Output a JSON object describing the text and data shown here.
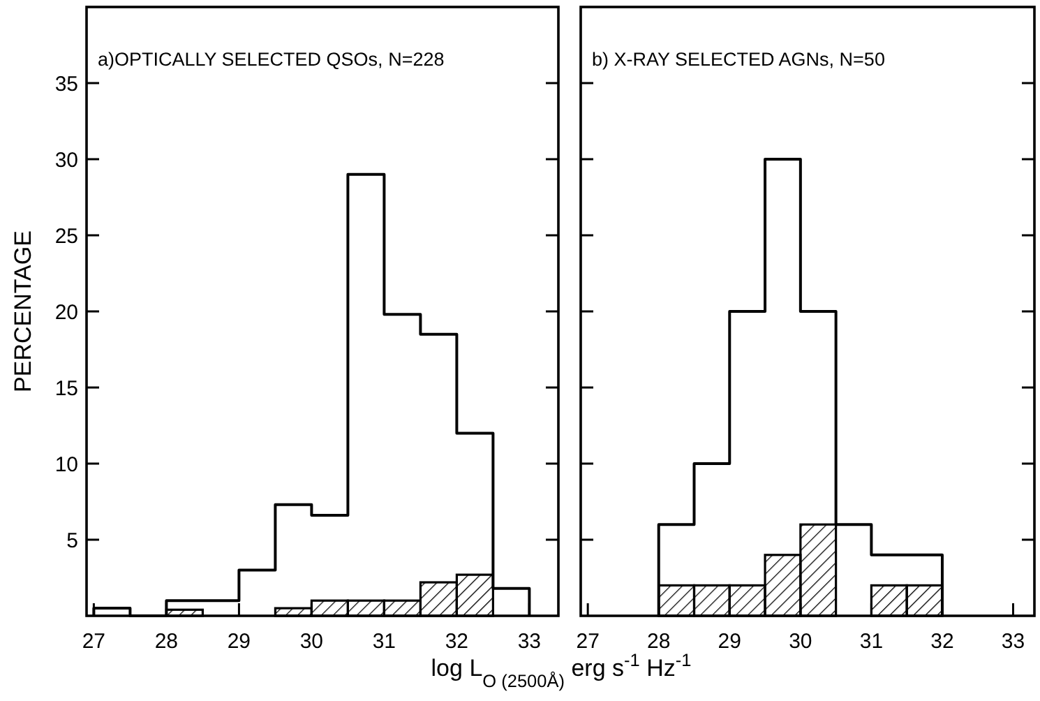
{
  "chart_data": [
    {
      "type": "histogram",
      "title": "a)OPTICALLY SELECTED QSOs, N=228",
      "ylabel": "PERCENTAGE",
      "xlabel": "log L$_{O (2500Å)}$ erg s$^{-1}$ Hz$^{-1}$",
      "bins": [
        27,
        27.5,
        28,
        28.5,
        29,
        29.5,
        30,
        30.5,
        31,
        31.5,
        32,
        32.5,
        33
      ],
      "series": [
        {
          "color": "#000000",
          "values": [
            0.5,
            0,
            1,
            1,
            3,
            7.3,
            6.6,
            29,
            19.8,
            18.5,
            12,
            1.8
          ]
        },
        {
          "color": "#000000",
          "values": [
            0,
            0,
            0.4,
            0,
            0,
            0.5,
            1,
            1,
            1,
            2.2,
            2.7,
            0
          ]
        }
      ],
      "xlim": [
        26.9,
        33.4
      ],
      "xticks": [
        27,
        28,
        29,
        30,
        31,
        32,
        33
      ],
      "ylim": [
        0,
        40
      ],
      "yticks": [
        5,
        10,
        15,
        20,
        25,
        30,
        35
      ]
    },
    {
      "type": "histogram",
      "title": "b) X-RAY SELECTED AGNs, N=50",
      "bins": [
        28,
        28.5,
        29,
        29.5,
        30,
        30.5,
        31,
        31.5,
        32
      ],
      "series": [
        {
          "color": "#000000",
          "values": [
            6,
            10,
            20,
            30,
            20,
            6,
            4,
            4
          ]
        },
        {
          "color": "#000000",
          "values": [
            2,
            2,
            2,
            4,
            6,
            0,
            2,
            2
          ]
        }
      ],
      "xlim": [
        26.9,
        33.3
      ],
      "xticks": [
        27,
        28,
        29,
        30,
        31,
        32,
        33
      ],
      "ylim": [
        0,
        40
      ],
      "yticks": [
        5,
        10,
        15,
        20,
        25,
        30,
        35
      ],
      "tick_labels": "x"
    }
  ]
}
